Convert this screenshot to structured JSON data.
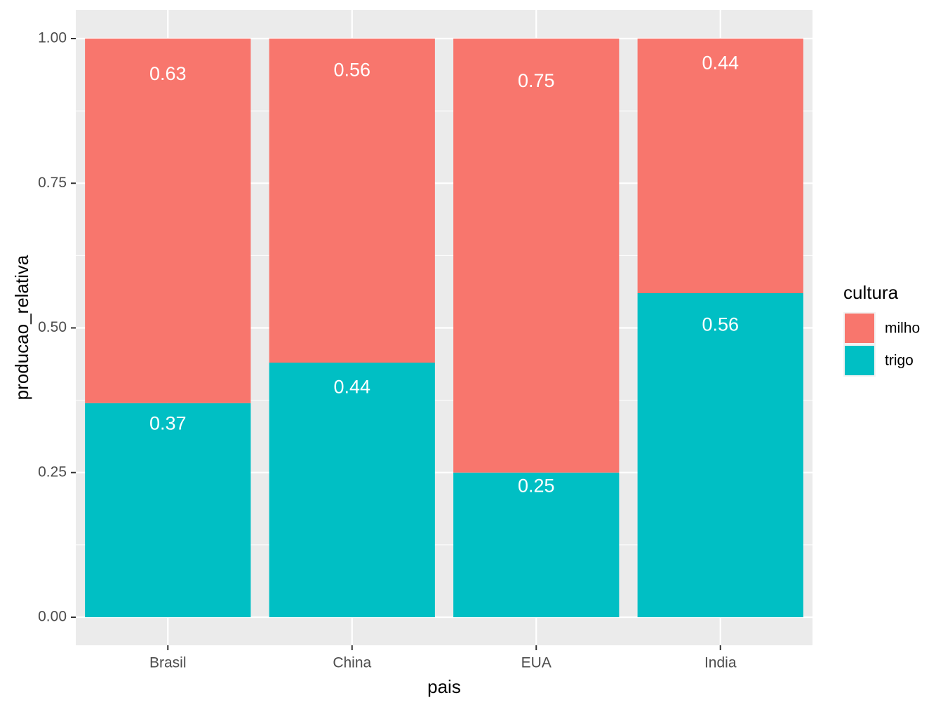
{
  "chart_data": {
    "type": "bar",
    "stacked": true,
    "categories": [
      "Brasil",
      "China",
      "EUA",
      "India"
    ],
    "series": [
      {
        "name": "trigo",
        "values": [
          0.37,
          0.44,
          0.25,
          0.56
        ],
        "labels": [
          "0.37",
          "0.44",
          "0.25",
          "0.56"
        ],
        "color": "#00BFC4"
      },
      {
        "name": "milho",
        "values": [
          0.63,
          0.56,
          0.75,
          0.44
        ],
        "labels": [
          "0.63",
          "0.56",
          "0.75",
          "0.44"
        ],
        "color": "#F8766D"
      }
    ],
    "xlabel": "pais",
    "ylabel": "producao_relativa",
    "ylim": [
      0,
      1
    ],
    "yticks": [
      "0.00",
      "0.25",
      "0.50",
      "0.75",
      "1.00"
    ],
    "ytick_values": [
      0,
      0.25,
      0.5,
      0.75,
      1
    ],
    "grid": true,
    "legend": {
      "title": "cultura",
      "placement": "right",
      "items": [
        {
          "label": "milho",
          "color": "#F8766D"
        },
        {
          "label": "trigo",
          "color": "#00BFC4"
        }
      ]
    },
    "panel_color": "#EBEBEB"
  }
}
